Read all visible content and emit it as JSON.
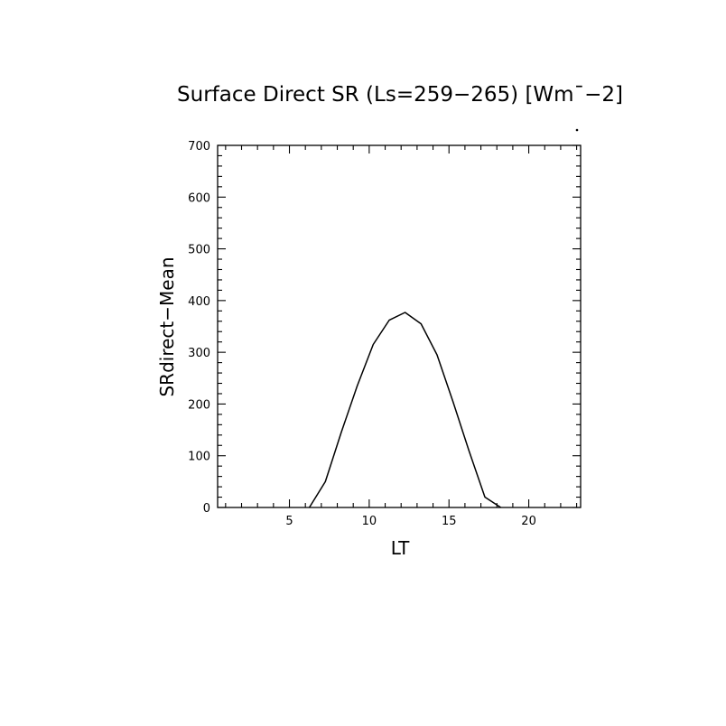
{
  "chart_data": {
    "type": "line",
    "title": "Surface Direct SR (Ls=259−265) [Wm¯−2]",
    "xlabel": "LT",
    "ylabel": "SRdirect−Mean",
    "xlim": [
      0.5,
      23.25
    ],
    "ylim": [
      0,
      700
    ],
    "x_ticks": [
      5,
      10,
      15,
      20
    ],
    "x_tick_labels": [
      "5",
      "10",
      "15",
      "20"
    ],
    "y_ticks": [
      0,
      100,
      200,
      300,
      400,
      500,
      600,
      700
    ],
    "y_tick_labels": [
      "0",
      "100",
      "200",
      "300",
      "400",
      "500",
      "600",
      "700"
    ],
    "grid": false,
    "series": [
      {
        "x": [
          6.25,
          7.25,
          8.25,
          9.25,
          10.25,
          11.25,
          12.25,
          13.25,
          14.25,
          15.25,
          16.25,
          17.25,
          18.25
        ],
        "y": [
          0,
          50,
          145,
          235,
          315,
          362,
          377,
          355,
          295,
          205,
          110,
          20,
          0
        ]
      }
    ]
  }
}
